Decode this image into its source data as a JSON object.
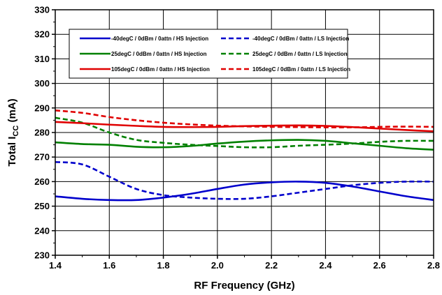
{
  "chart_data": {
    "type": "line",
    "title": "",
    "xlabel": "RF Frequency (GHz)",
    "ylabel": {
      "prefix": "Total I",
      "sub": "CC",
      "suffix": " (mA)"
    },
    "xlim": [
      1.4,
      2.8
    ],
    "ylim": [
      230,
      330
    ],
    "x_ticks": [
      1.4,
      1.6,
      1.8,
      2.0,
      2.2,
      2.4,
      2.6,
      2.8
    ],
    "x_tick_labels": [
      "1.4",
      "1.6",
      "1.8",
      "2.0",
      "2.2",
      "2.4",
      "2.6",
      "2.8"
    ],
    "y_ticks": [
      230,
      240,
      250,
      260,
      270,
      280,
      290,
      300,
      310,
      320,
      330
    ],
    "y_tick_labels": [
      "230",
      "240",
      "250",
      "260",
      "270",
      "280",
      "290",
      "300",
      "310",
      "320",
      "330"
    ],
    "grid": true,
    "legend_position": "top",
    "x": [
      1.4,
      1.5,
      1.6,
      1.7,
      1.8,
      1.9,
      2.0,
      2.1,
      2.2,
      2.3,
      2.4,
      2.5,
      2.6,
      2.7,
      2.8
    ],
    "series": [
      {
        "name": "-40degC /  0dBm /  0attn /  HS Injection",
        "color": "#0000CC",
        "dash": "solid",
        "values": [
          254,
          253,
          252.5,
          252.5,
          253.5,
          255,
          257,
          258.8,
          259.7,
          260,
          259.5,
          258,
          256,
          254,
          252.5
        ]
      },
      {
        "name": "-40degC /  0dBm /  0attn /  LS Injection",
        "color": "#0000CC",
        "dash": "dashed",
        "values": [
          268,
          267,
          262,
          257,
          254.5,
          253.5,
          253,
          253,
          254,
          255.5,
          257,
          258.5,
          259.5,
          260,
          260
        ]
      },
      {
        "name": "25degC /  0dBm /  0attn /  HS Injection",
        "color": "#008000",
        "dash": "solid",
        "values": [
          276,
          275.3,
          275,
          274.2,
          274,
          274.5,
          275.5,
          276.3,
          276.8,
          277,
          276.6,
          275.6,
          274.6,
          273.6,
          273
        ]
      },
      {
        "name": "25degC /  0dBm /  0attn /  LS Injection",
        "color": "#008000",
        "dash": "dashed",
        "values": [
          286,
          284,
          280,
          277,
          275.8,
          275,
          274.5,
          274,
          274,
          274.6,
          275,
          275.5,
          276.2,
          276.6,
          276.6
        ]
      },
      {
        "name": "105degC /  0dBm /  0attn /  HS Injection",
        "color": "#E00000",
        "dash": "solid",
        "values": [
          284.3,
          283.8,
          283.2,
          282.7,
          282.3,
          282.2,
          282.3,
          282.6,
          282.8,
          282.9,
          282.7,
          282.2,
          281.6,
          281,
          280.5
        ]
      },
      {
        "name": "105degC /  0dBm /  0attn /  LS Injection",
        "color": "#E00000",
        "dash": "dashed",
        "values": [
          289,
          288,
          286.3,
          285,
          284,
          283.3,
          282.8,
          282.5,
          282.3,
          282.2,
          282.1,
          282.1,
          282.3,
          282.4,
          282.3
        ]
      }
    ]
  }
}
